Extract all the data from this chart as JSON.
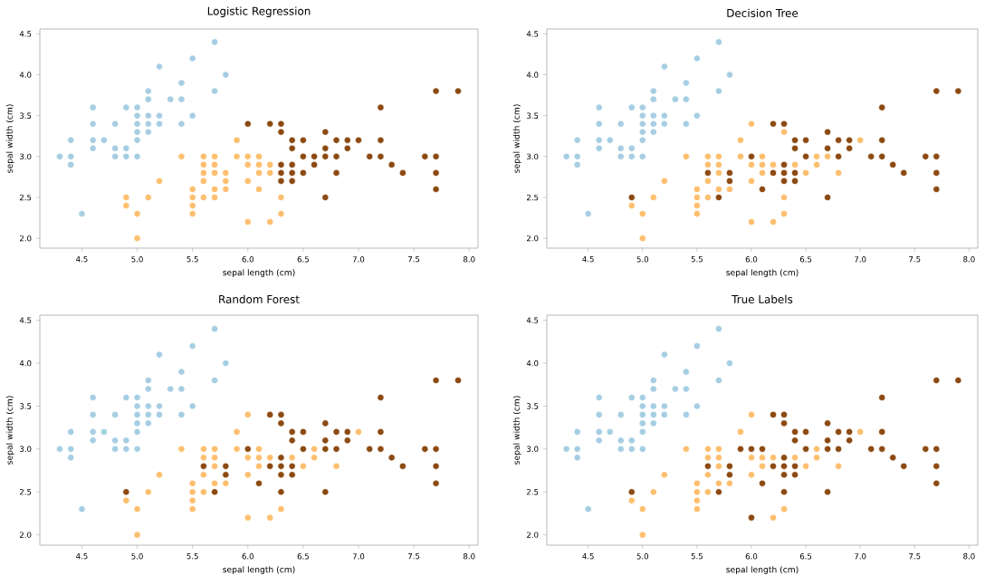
{
  "chart_data": [
    {
      "type": "scatter",
      "title": "Logistic Regression",
      "xlabel": "sepal length (cm)",
      "ylabel": "sepal width (cm)",
      "xlim": [
        4.12,
        8.08
      ],
      "ylim": [
        1.88,
        4.56
      ],
      "xticks": [
        4.5,
        {
          "value": 5,
          "label": "5.0"
        },
        5.5,
        {
          "value": 6,
          "label": "6.0"
        },
        6.5,
        {
          "value": 7,
          "label": "7.0"
        },
        7.5,
        {
          "value": 8,
          "label": "8.0"
        }
      ],
      "yticks": [
        {
          "value": 2,
          "label": "2.0"
        },
        2.5,
        {
          "value": 3,
          "label": "3.0"
        },
        3.5,
        {
          "value": 4,
          "label": "4.0"
        },
        4.5
      ],
      "series": [
        {
          "color": "#a6cee3",
          "x": [
            4.3,
            4.4,
            4.4,
            4.4,
            4.5,
            4.6,
            4.6,
            4.6,
            4.6,
            4.7,
            4.8,
            4.8,
            4.8,
            4.9,
            4.9,
            4.9,
            5.0,
            5.0,
            5.0,
            5.0,
            5.0,
            5.0,
            5.1,
            5.1,
            5.1,
            5.1,
            5.1,
            5.2,
            5.2,
            5.2,
            5.3,
            5.4,
            5.4,
            5.4,
            5.5,
            5.5,
            5.7,
            5.7,
            5.8
          ],
          "values": [
            3.0,
            2.9,
            3.0,
            3.2,
            2.3,
            3.1,
            3.2,
            3.4,
            3.6,
            3.2,
            3.0,
            3.1,
            3.4,
            3.0,
            3.1,
            3.6,
            3.0,
            3.2,
            3.3,
            3.4,
            3.5,
            3.6,
            3.3,
            3.4,
            3.5,
            3.7,
            3.8,
            3.4,
            3.5,
            4.1,
            3.7,
            3.4,
            3.7,
            3.9,
            3.5,
            4.2,
            3.8,
            4.4,
            4.0
          ]
        },
        {
          "color": "#fdbf6f",
          "x": [
            4.9,
            4.9,
            5.0,
            5.0,
            5.1,
            5.2,
            5.4,
            5.5,
            5.5,
            5.5,
            5.5,
            5.6,
            5.6,
            5.6,
            5.6,
            5.6,
            5.7,
            5.7,
            5.7,
            5.7,
            5.7,
            5.8,
            5.8,
            5.8,
            5.9,
            5.9,
            6.0,
            6.0,
            6.0,
            6.0,
            6.1,
            6.1,
            6.1,
            6.1,
            6.2,
            6.2,
            6.2,
            6.3,
            6.3
          ],
          "values": [
            2.4,
            2.5,
            2.0,
            2.3,
            2.5,
            2.7,
            3.0,
            2.3,
            2.4,
            2.5,
            2.6,
            2.5,
            2.7,
            2.8,
            2.9,
            3.0,
            2.5,
            2.6,
            2.8,
            2.9,
            3.0,
            2.6,
            2.7,
            2.8,
            3.0,
            3.2,
            2.2,
            2.7,
            2.9,
            3.0,
            2.6,
            2.8,
            2.9,
            3.0,
            2.2,
            2.8,
            2.9,
            2.3,
            2.5
          ]
        },
        {
          "color": "#8c4a12",
          "x": [
            6.0,
            6.2,
            6.3,
            6.3,
            6.3,
            6.3,
            6.3,
            6.4,
            6.4,
            6.4,
            6.4,
            6.4,
            6.5,
            6.5,
            6.5,
            6.6,
            6.6,
            6.7,
            6.7,
            6.7,
            6.7,
            6.8,
            6.8,
            6.8,
            6.9,
            6.9,
            7.0,
            7.1,
            7.2,
            7.2,
            7.2,
            7.3,
            7.4,
            7.6,
            7.7,
            7.7,
            7.7,
            7.7,
            7.9
          ],
          "values": [
            3.4,
            3.4,
            2.7,
            2.8,
            2.9,
            3.3,
            3.4,
            2.7,
            2.8,
            2.9,
            3.1,
            3.2,
            2.8,
            3.0,
            3.2,
            2.9,
            3.0,
            2.5,
            3.0,
            3.1,
            3.3,
            2.8,
            3.0,
            3.2,
            3.1,
            3.2,
            3.2,
            3.0,
            3.0,
            3.2,
            3.6,
            2.9,
            2.8,
            3.0,
            2.6,
            2.8,
            3.0,
            3.8,
            3.8
          ]
        }
      ]
    },
    {
      "type": "scatter",
      "title": "Decision Tree",
      "xlabel": "sepal length (cm)",
      "ylabel": "sepal width (cm)",
      "xlim": [
        4.12,
        8.08
      ],
      "ylim": [
        1.88,
        4.56
      ],
      "xticks": [
        4.5,
        {
          "value": 5,
          "label": "5.0"
        },
        5.5,
        {
          "value": 6,
          "label": "6.0"
        },
        6.5,
        {
          "value": 7,
          "label": "7.0"
        },
        7.5,
        {
          "value": 8,
          "label": "8.0"
        }
      ],
      "yticks": [
        {
          "value": 2,
          "label": "2.0"
        },
        2.5,
        {
          "value": 3,
          "label": "3.0"
        },
        3.5,
        {
          "value": 4,
          "label": "4.0"
        },
        4.5
      ],
      "series": [
        {
          "color": "#a6cee3",
          "x": [
            4.3,
            4.4,
            4.4,
            4.4,
            4.5,
            4.6,
            4.6,
            4.6,
            4.6,
            4.7,
            4.8,
            4.8,
            4.8,
            4.9,
            4.9,
            4.9,
            5.0,
            5.0,
            5.0,
            5.0,
            5.0,
            5.0,
            5.1,
            5.1,
            5.1,
            5.1,
            5.1,
            5.2,
            5.2,
            5.2,
            5.3,
            5.4,
            5.4,
            5.4,
            5.5,
            5.5,
            5.7,
            5.7,
            5.8
          ],
          "values": [
            3.0,
            2.9,
            3.0,
            3.2,
            2.3,
            3.1,
            3.2,
            3.4,
            3.6,
            3.2,
            3.0,
            3.1,
            3.4,
            3.0,
            3.1,
            3.6,
            3.0,
            3.2,
            3.3,
            3.4,
            3.5,
            3.6,
            3.3,
            3.4,
            3.5,
            3.7,
            3.8,
            3.4,
            3.5,
            4.1,
            3.7,
            3.4,
            3.7,
            3.9,
            3.5,
            4.2,
            3.8,
            4.4,
            4.0
          ]
        },
        {
          "color": "#fdbf6f",
          "x": [
            4.9,
            5.0,
            5.0,
            5.1,
            5.2,
            5.4,
            5.5,
            5.5,
            5.5,
            5.5,
            5.6,
            5.6,
            5.6,
            5.6,
            5.7,
            5.7,
            5.7,
            5.7,
            5.8,
            5.9,
            6.0,
            6.0,
            6.0,
            6.1,
            6.1,
            6.2,
            6.2,
            6.3,
            6.4,
            6.5,
            6.6,
            6.6,
            6.8,
            7.0,
            5.9,
            6.1,
            6.0,
            6.3,
            6.3,
            6.7
          ],
          "values": [
            2.4,
            2.0,
            2.3,
            2.5,
            2.7,
            3.0,
            2.3,
            2.4,
            2.5,
            2.6,
            2.5,
            2.7,
            2.9,
            3.0,
            2.6,
            2.8,
            2.9,
            3.0,
            2.6,
            3.2,
            2.7,
            2.9,
            3.4,
            2.8,
            2.9,
            2.2,
            2.9,
            2.3,
            2.9,
            2.8,
            2.9,
            3.0,
            2.8,
            3.2,
            3.0,
            3.0,
            2.2,
            2.5,
            3.3,
            3.0
          ]
        },
        {
          "color": "#8c4a12",
          "x": [
            4.9,
            5.6,
            5.7,
            5.8,
            5.8,
            6.0,
            6.1,
            6.2,
            6.2,
            6.3,
            6.3,
            6.3,
            6.3,
            6.4,
            6.4,
            6.4,
            6.4,
            6.5,
            6.5,
            6.7,
            6.7,
            6.7,
            6.8,
            6.8,
            6.9,
            6.9,
            7.1,
            7.2,
            7.2,
            7.2,
            7.3,
            7.4,
            7.6,
            7.7,
            7.7,
            7.7,
            7.7,
            7.9
          ],
          "values": [
            2.5,
            2.8,
            2.5,
            2.7,
            2.8,
            3.0,
            2.6,
            2.8,
            3.4,
            2.7,
            2.8,
            2.9,
            3.4,
            2.7,
            2.8,
            3.1,
            3.2,
            3.0,
            3.2,
            2.5,
            3.1,
            3.3,
            3.0,
            3.2,
            3.1,
            3.2,
            3.0,
            3.0,
            3.2,
            3.6,
            2.9,
            2.8,
            3.0,
            2.6,
            2.8,
            3.0,
            3.8,
            3.8
          ]
        }
      ]
    },
    {
      "type": "scatter",
      "title": "Random Forest",
      "xlabel": "sepal length (cm)",
      "ylabel": "sepal width (cm)",
      "xlim": [
        4.12,
        8.08
      ],
      "ylim": [
        1.88,
        4.56
      ],
      "xticks": [
        4.5,
        {
          "value": 5,
          "label": "5.0"
        },
        5.5,
        {
          "value": 6,
          "label": "6.0"
        },
        6.5,
        {
          "value": 7,
          "label": "7.0"
        },
        7.5,
        {
          "value": 8,
          "label": "8.0"
        }
      ],
      "yticks": [
        {
          "value": 2,
          "label": "2.0"
        },
        2.5,
        {
          "value": 3,
          "label": "3.0"
        },
        3.5,
        {
          "value": 4,
          "label": "4.0"
        },
        4.5
      ],
      "series": [
        {
          "color": "#a6cee3",
          "x": [
            4.3,
            4.4,
            4.4,
            4.4,
            4.5,
            4.6,
            4.6,
            4.6,
            4.6,
            4.7,
            4.8,
            4.8,
            4.8,
            4.9,
            4.9,
            4.9,
            5.0,
            5.0,
            5.0,
            5.0,
            5.0,
            5.0,
            5.1,
            5.1,
            5.1,
            5.1,
            5.1,
            5.2,
            5.2,
            5.2,
            5.3,
            5.4,
            5.4,
            5.4,
            5.5,
            5.5,
            5.7,
            5.7,
            5.8
          ],
          "values": [
            3.0,
            2.9,
            3.0,
            3.2,
            2.3,
            3.1,
            3.2,
            3.4,
            3.6,
            3.2,
            3.0,
            3.1,
            3.4,
            3.0,
            3.1,
            3.6,
            3.0,
            3.2,
            3.3,
            3.4,
            3.5,
            3.6,
            3.3,
            3.4,
            3.5,
            3.7,
            3.8,
            3.4,
            3.5,
            4.1,
            3.7,
            3.4,
            3.7,
            3.9,
            3.5,
            4.2,
            3.8,
            4.4,
            4.0
          ]
        },
        {
          "color": "#fdbf6f",
          "x": [
            4.9,
            5.0,
            5.0,
            5.1,
            5.2,
            5.4,
            5.5,
            5.5,
            5.5,
            5.5,
            5.6,
            5.6,
            5.6,
            5.6,
            5.7,
            5.7,
            5.7,
            5.7,
            5.8,
            5.9,
            6.0,
            6.0,
            6.0,
            6.1,
            6.1,
            6.2,
            6.2,
            6.3,
            6.4,
            6.5,
            6.6,
            6.6,
            6.8,
            7.0,
            5.9,
            6.1,
            6.0
          ],
          "values": [
            2.4,
            2.0,
            2.3,
            2.5,
            2.7,
            3.0,
            2.3,
            2.4,
            2.5,
            2.6,
            2.5,
            2.7,
            2.9,
            3.0,
            2.6,
            2.8,
            2.9,
            3.0,
            2.6,
            3.2,
            2.7,
            2.9,
            3.4,
            2.8,
            2.9,
            2.2,
            2.9,
            2.3,
            2.9,
            2.8,
            2.9,
            3.0,
            2.8,
            3.2,
            3.0,
            3.0,
            2.2
          ]
        },
        {
          "color": "#8c4a12",
          "x": [
            4.9,
            5.6,
            5.7,
            5.8,
            5.8,
            6.0,
            6.1,
            6.2,
            6.2,
            6.3,
            6.3,
            6.3,
            6.3,
            6.3,
            6.3,
            6.4,
            6.4,
            6.4,
            6.4,
            6.5,
            6.5,
            6.7,
            6.7,
            6.7,
            6.7,
            6.8,
            6.8,
            6.9,
            6.9,
            7.1,
            7.2,
            7.2,
            7.2,
            7.3,
            7.4,
            7.6,
            7.7,
            7.7,
            7.7,
            7.7,
            7.9
          ],
          "values": [
            2.5,
            2.8,
            2.5,
            2.7,
            2.8,
            3.0,
            2.6,
            2.8,
            3.4,
            2.5,
            2.7,
            2.8,
            2.9,
            3.3,
            3.4,
            2.7,
            2.8,
            3.1,
            3.2,
            3.0,
            3.2,
            2.5,
            3.0,
            3.1,
            3.3,
            3.0,
            3.2,
            3.1,
            3.2,
            3.0,
            3.0,
            3.2,
            3.6,
            2.9,
            2.8,
            3.0,
            2.6,
            2.8,
            3.0,
            3.8,
            3.8
          ]
        }
      ]
    },
    {
      "type": "scatter",
      "title": "True Labels",
      "xlabel": "sepal length (cm)",
      "ylabel": "sepal width (cm)",
      "xlim": [
        4.12,
        8.08
      ],
      "ylim": [
        1.88,
        4.56
      ],
      "xticks": [
        4.5,
        {
          "value": 5,
          "label": "5.0"
        },
        5.5,
        {
          "value": 6,
          "label": "6.0"
        },
        6.5,
        {
          "value": 7,
          "label": "7.0"
        },
        7.5,
        {
          "value": 8,
          "label": "8.0"
        }
      ],
      "yticks": [
        {
          "value": 2,
          "label": "2.0"
        },
        2.5,
        {
          "value": 3,
          "label": "3.0"
        },
        3.5,
        {
          "value": 4,
          "label": "4.0"
        },
        4.5
      ],
      "series": [
        {
          "color": "#a6cee3",
          "x": [
            4.3,
            4.4,
            4.4,
            4.4,
            4.5,
            4.6,
            4.6,
            4.6,
            4.6,
            4.7,
            4.8,
            4.8,
            4.8,
            4.9,
            4.9,
            4.9,
            5.0,
            5.0,
            5.0,
            5.0,
            5.0,
            5.0,
            5.1,
            5.1,
            5.1,
            5.1,
            5.1,
            5.2,
            5.2,
            5.2,
            5.3,
            5.4,
            5.4,
            5.4,
            5.5,
            5.5,
            5.7,
            5.7,
            5.8
          ],
          "values": [
            3.0,
            2.9,
            3.0,
            3.2,
            2.3,
            3.1,
            3.2,
            3.4,
            3.6,
            3.2,
            3.0,
            3.1,
            3.4,
            3.0,
            3.1,
            3.6,
            3.0,
            3.2,
            3.3,
            3.4,
            3.5,
            3.6,
            3.3,
            3.4,
            3.5,
            3.7,
            3.8,
            3.4,
            3.5,
            4.1,
            3.7,
            3.4,
            3.7,
            3.9,
            3.5,
            4.2,
            3.8,
            4.4,
            4.0
          ]
        },
        {
          "color": "#fdbf6f",
          "x": [
            4.9,
            5.0,
            5.0,
            5.1,
            5.2,
            5.4,
            5.5,
            5.5,
            5.5,
            5.5,
            5.6,
            5.6,
            5.6,
            5.6,
            5.7,
            5.7,
            5.7,
            5.7,
            5.8,
            5.9,
            6.0,
            6.0,
            6.0,
            6.1,
            6.1,
            6.2,
            6.2,
            6.3,
            6.4,
            6.5,
            6.6,
            6.6,
            6.8,
            7.0
          ],
          "values": [
            2.4,
            2.0,
            2.3,
            2.5,
            2.7,
            3.0,
            2.3,
            2.4,
            2.5,
            2.6,
            2.5,
            2.7,
            2.9,
            3.0,
            2.6,
            2.8,
            2.9,
            3.0,
            2.6,
            3.2,
            2.7,
            2.9,
            3.4,
            2.8,
            2.9,
            2.2,
            2.9,
            2.3,
            2.9,
            2.8,
            2.9,
            3.0,
            2.8,
            3.2
          ]
        },
        {
          "color": "#8c4a12",
          "x": [
            4.9,
            5.6,
            5.7,
            5.8,
            5.8,
            5.9,
            6.0,
            6.0,
            6.1,
            6.1,
            6.2,
            6.2,
            6.3,
            6.3,
            6.3,
            6.3,
            6.3,
            6.3,
            6.4,
            6.4,
            6.4,
            6.4,
            6.5,
            6.5,
            6.7,
            6.7,
            6.7,
            6.7,
            6.8,
            6.8,
            6.9,
            6.9,
            7.1,
            7.2,
            7.2,
            7.2,
            7.3,
            7.4,
            7.6,
            7.7,
            7.7,
            7.7,
            7.7,
            7.9
          ],
          "values": [
            2.5,
            2.8,
            2.5,
            2.7,
            2.8,
            3.0,
            2.2,
            3.0,
            2.6,
            3.0,
            2.8,
            3.4,
            2.5,
            2.7,
            2.8,
            2.9,
            3.3,
            3.4,
            2.7,
            2.8,
            3.1,
            3.2,
            3.0,
            3.2,
            2.5,
            3.0,
            3.1,
            3.3,
            3.0,
            3.2,
            3.1,
            3.2,
            3.0,
            3.0,
            3.2,
            3.6,
            2.9,
            2.8,
            3.0,
            2.6,
            2.8,
            3.0,
            3.8,
            3.8
          ]
        }
      ]
    }
  ]
}
